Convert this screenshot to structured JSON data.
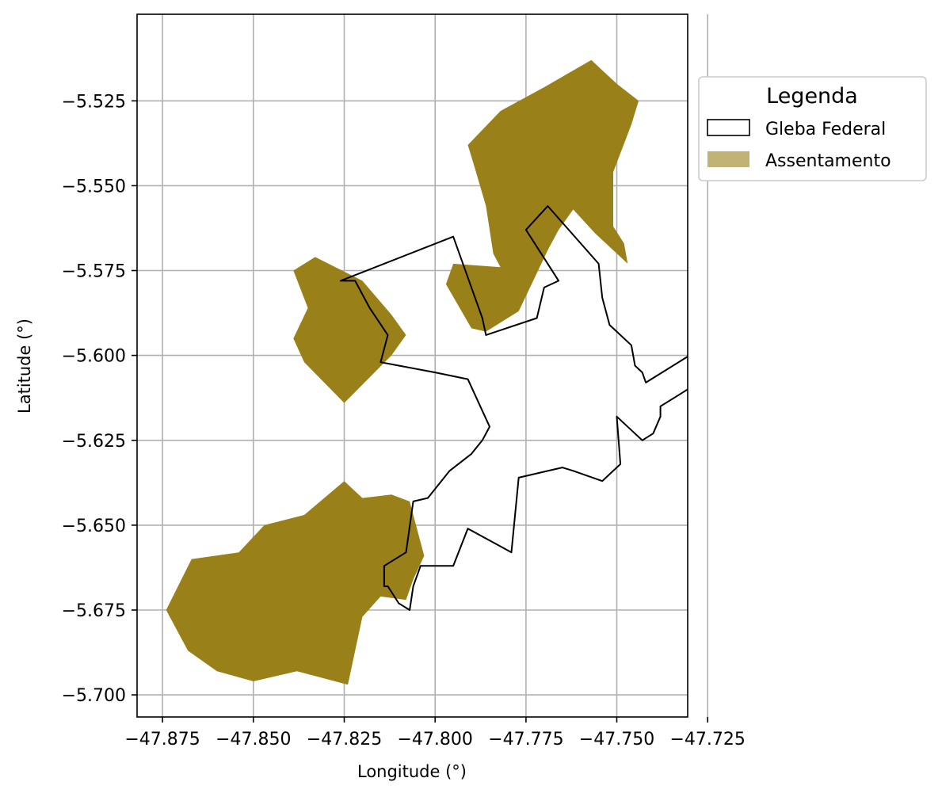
{
  "chart_data": {
    "type": "map",
    "xlabel": "Longitude (°)",
    "ylabel": "Latitude (°)",
    "xlim": [
      -47.882,
      -47.7305
    ],
    "ylim": [
      -5.7065,
      -5.4995
    ],
    "xticks": [
      -47.875,
      -47.85,
      -47.825,
      -47.8,
      -47.775,
      -47.75,
      -47.725
    ],
    "xtick_labels": [
      "−47.875",
      "−47.850",
      "−47.825",
      "−47.800",
      "−47.775",
      "−47.750",
      "−47.725"
    ],
    "yticks": [
      -5.525,
      -5.55,
      -5.575,
      -5.6,
      -5.625,
      -5.65,
      -5.675,
      -5.7
    ],
    "ytick_labels": [
      "−5.525",
      "−5.550",
      "−5.575",
      "−5.600",
      "−5.625",
      "−5.650",
      "−5.675",
      "−5.700"
    ],
    "grid": true,
    "legend": {
      "title": "Legenda",
      "placement": "outside-upper-right",
      "entries": [
        {
          "label": "Gleba Federal",
          "style": "outline",
          "stroke": "#000000"
        },
        {
          "label": "Assentamento",
          "style": "fill",
          "fill": "#998019",
          "alpha": 0.6
        }
      ]
    },
    "colors": {
      "assentamento": "#998019",
      "gleba_stroke": "#000000",
      "grid": "#b0b0b0"
    },
    "layers": [
      {
        "name": "Assentamento",
        "fill": "#998019",
        "polygons": [
          [
            [
              -47.782,
              -5.528
            ],
            [
              -47.77,
              -5.521
            ],
            [
              -47.757,
              -5.513
            ],
            [
              -47.75,
              -5.52
            ],
            [
              -47.744,
              -5.525
            ],
            [
              -47.746,
              -5.532
            ],
            [
              -47.751,
              -5.546
            ],
            [
              -47.751,
              -5.562
            ],
            [
              -47.748,
              -5.567
            ],
            [
              -47.747,
              -5.573
            ],
            [
              -47.756,
              -5.564
            ],
            [
              -47.762,
              -5.557
            ],
            [
              -47.766,
              -5.563
            ],
            [
              -47.769,
              -5.569
            ],
            [
              -47.777,
              -5.587
            ],
            [
              -47.786,
              -5.593
            ],
            [
              -47.79,
              -5.592
            ],
            [
              -47.797,
              -5.579
            ],
            [
              -47.795,
              -5.573
            ],
            [
              -47.782,
              -5.574
            ],
            [
              -47.784,
              -5.57
            ],
            [
              -47.786,
              -5.556
            ],
            [
              -47.789,
              -5.545
            ],
            [
              -47.791,
              -5.538
            ]
          ],
          [
            [
              -47.839,
              -5.575
            ],
            [
              -47.833,
              -5.571
            ],
            [
              -47.82,
              -5.578
            ],
            [
              -47.812,
              -5.588
            ],
            [
              -47.808,
              -5.594
            ],
            [
              -47.812,
              -5.6
            ],
            [
              -47.825,
              -5.614
            ],
            [
              -47.836,
              -5.602
            ],
            [
              -47.839,
              -5.595
            ],
            [
              -47.835,
              -5.586
            ]
          ],
          [
            [
              -47.874,
              -5.675
            ],
            [
              -47.867,
              -5.66
            ],
            [
              -47.854,
              -5.658
            ],
            [
              -47.847,
              -5.65
            ],
            [
              -47.836,
              -5.647
            ],
            [
              -47.825,
              -5.637
            ],
            [
              -47.82,
              -5.642
            ],
            [
              -47.812,
              -5.641
            ],
            [
              -47.807,
              -5.643
            ],
            [
              -47.803,
              -5.659
            ],
            [
              -47.806,
              -5.666
            ],
            [
              -47.808,
              -5.672
            ],
            [
              -47.815,
              -5.671
            ],
            [
              -47.82,
              -5.677
            ],
            [
              -47.824,
              -5.697
            ],
            [
              -47.838,
              -5.693
            ],
            [
              -47.85,
              -5.696
            ],
            [
              -47.86,
              -5.693
            ],
            [
              -47.868,
              -5.687
            ]
          ]
        ]
      },
      {
        "name": "Gleba Federal",
        "stroke": "#000000",
        "polygons": [
          [
            [
              -47.826,
              -5.578
            ],
            [
              -47.795,
              -5.565
            ],
            [
              -47.787,
              -5.589
            ],
            [
              -47.786,
              -5.594
            ],
            [
              -47.772,
              -5.589
            ],
            [
              -47.77,
              -5.58
            ],
            [
              -47.766,
              -5.578
            ],
            [
              -47.775,
              -5.563
            ],
            [
              -47.769,
              -5.556
            ],
            [
              -47.755,
              -5.573
            ],
            [
              -47.754,
              -5.583
            ],
            [
              -47.752,
              -5.591
            ],
            [
              -47.746,
              -5.597
            ],
            [
              -47.745,
              -5.603
            ],
            [
              -47.743,
              -5.605
            ],
            [
              -47.742,
              -5.608
            ],
            [
              -47.73,
              -5.6
            ],
            [
              -47.726,
              -5.607
            ],
            [
              -47.732,
              -5.611
            ],
            [
              -47.738,
              -5.615
            ],
            [
              -47.738,
              -5.618
            ],
            [
              -47.74,
              -5.623
            ],
            [
              -47.743,
              -5.625
            ],
            [
              -47.75,
              -5.618
            ],
            [
              -47.749,
              -5.632
            ],
            [
              -47.754,
              -5.637
            ],
            [
              -47.762,
              -5.634
            ],
            [
              -47.765,
              -5.633
            ],
            [
              -47.777,
              -5.636
            ],
            [
              -47.779,
              -5.658
            ],
            [
              -47.791,
              -5.651
            ],
            [
              -47.795,
              -5.662
            ],
            [
              -47.804,
              -5.662
            ],
            [
              -47.806,
              -5.668
            ],
            [
              -47.807,
              -5.675
            ],
            [
              -47.81,
              -5.673
            ],
            [
              -47.813,
              -5.668
            ],
            [
              -47.814,
              -5.668
            ],
            [
              -47.814,
              -5.662
            ],
            [
              -47.808,
              -5.658
            ],
            [
              -47.806,
              -5.643
            ],
            [
              -47.802,
              -5.642
            ],
            [
              -47.796,
              -5.634
            ],
            [
              -47.79,
              -5.629
            ],
            [
              -47.787,
              -5.625
            ],
            [
              -47.785,
              -5.621
            ],
            [
              -47.791,
              -5.607
            ],
            [
              -47.8,
              -5.605
            ],
            [
              -47.815,
              -5.602
            ],
            [
              -47.813,
              -5.594
            ],
            [
              -47.818,
              -5.586
            ],
            [
              -47.822,
              -5.578
            ]
          ]
        ]
      }
    ]
  }
}
